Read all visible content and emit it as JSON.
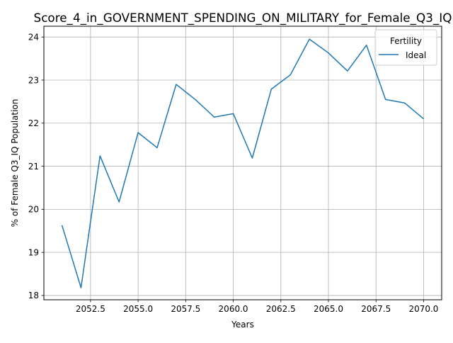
{
  "chart_data": {
    "type": "line",
    "title": "Score_4_in_GOVERNMENT_SPENDING_ON_MILITARY_for_Female_Q3_IQ",
    "xlabel": "Years",
    "ylabel": "% of Female Q3_IQ Population",
    "xlim": [
      2050.05,
      2070.95
    ],
    "ylim": [
      17.9,
      24.25
    ],
    "xticks": [
      2052.5,
      2055.0,
      2057.5,
      2060.0,
      2062.5,
      2065.0,
      2067.5,
      2070.0
    ],
    "xtick_labels": [
      "2052.5",
      "2055.0",
      "2057.5",
      "2060.0",
      "2062.5",
      "2065.0",
      "2067.5",
      "2070.0"
    ],
    "yticks": [
      18,
      19,
      20,
      21,
      22,
      23,
      24
    ],
    "ytick_labels": [
      "18",
      "19",
      "20",
      "21",
      "22",
      "23",
      "24"
    ],
    "grid": true,
    "legend": {
      "title": "Fertility",
      "placement": "top-right"
    },
    "series": [
      {
        "name": "Ideal",
        "color": "#1f77b4",
        "x": [
          2051,
          2052,
          2053,
          2054,
          2055,
          2056,
          2057,
          2058,
          2059,
          2060,
          2061,
          2062,
          2063,
          2064,
          2065,
          2066,
          2067,
          2068,
          2069,
          2070
        ],
        "y": [
          19.63,
          18.18,
          21.24,
          20.17,
          21.78,
          21.43,
          22.9,
          22.55,
          22.14,
          22.22,
          21.19,
          22.79,
          23.12,
          23.95,
          23.63,
          23.21,
          23.81,
          22.55,
          22.47,
          22.1
        ]
      }
    ]
  }
}
